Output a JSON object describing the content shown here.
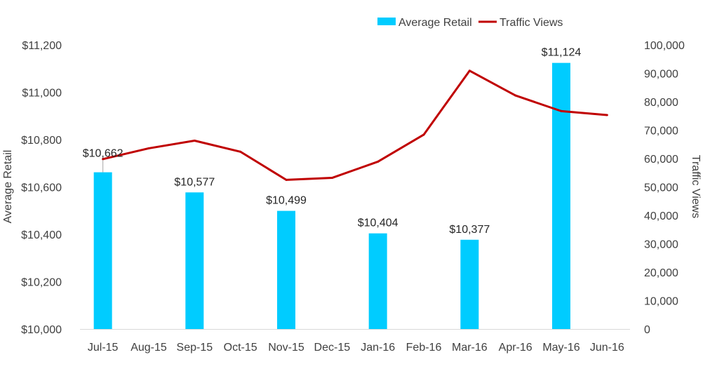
{
  "chart_data": {
    "type": "bar+line",
    "categories": [
      "Jul-15",
      "Aug-15",
      "Sep-15",
      "Oct-15",
      "Nov-15",
      "Dec-15",
      "Jan-16",
      "Feb-16",
      "Mar-16",
      "Apr-16",
      "May-16",
      "Jun-16"
    ],
    "series": [
      {
        "name": "Average Retail",
        "type": "bar",
        "axis": "left",
        "color": "#00CCFF",
        "values": [
          10662,
          null,
          10577,
          null,
          10499,
          null,
          10404,
          null,
          10377,
          null,
          11124,
          null
        ],
        "labels": [
          "$10,662",
          null,
          "$10,577",
          null,
          "$10,499",
          null,
          "$10,404",
          null,
          "$10,377",
          null,
          "$11,124",
          null
        ]
      },
      {
        "name": "Traffic Views",
        "type": "line",
        "axis": "right",
        "color": "#C00000",
        "values": [
          59800,
          63600,
          66300,
          62400,
          52500,
          53200,
          58900,
          68400,
          90900,
          82200,
          76700,
          75300
        ]
      }
    ],
    "ylabel": "Average Retail",
    "y2label": "Traffic Views",
    "ylim": [
      10000,
      11200
    ],
    "y2lim": [
      0,
      100000
    ],
    "y_ticks": [
      "$10,000",
      "$10,200",
      "$10,400",
      "$10,600",
      "$10,800",
      "$11,000",
      "$11,200"
    ],
    "y2_ticks": [
      "0",
      "10,000",
      "20,000",
      "30,000",
      "40,000",
      "50,000",
      "60,000",
      "70,000",
      "80,000",
      "90,000",
      "100,000"
    ],
    "legend_position": "top-right",
    "grid": false
  }
}
